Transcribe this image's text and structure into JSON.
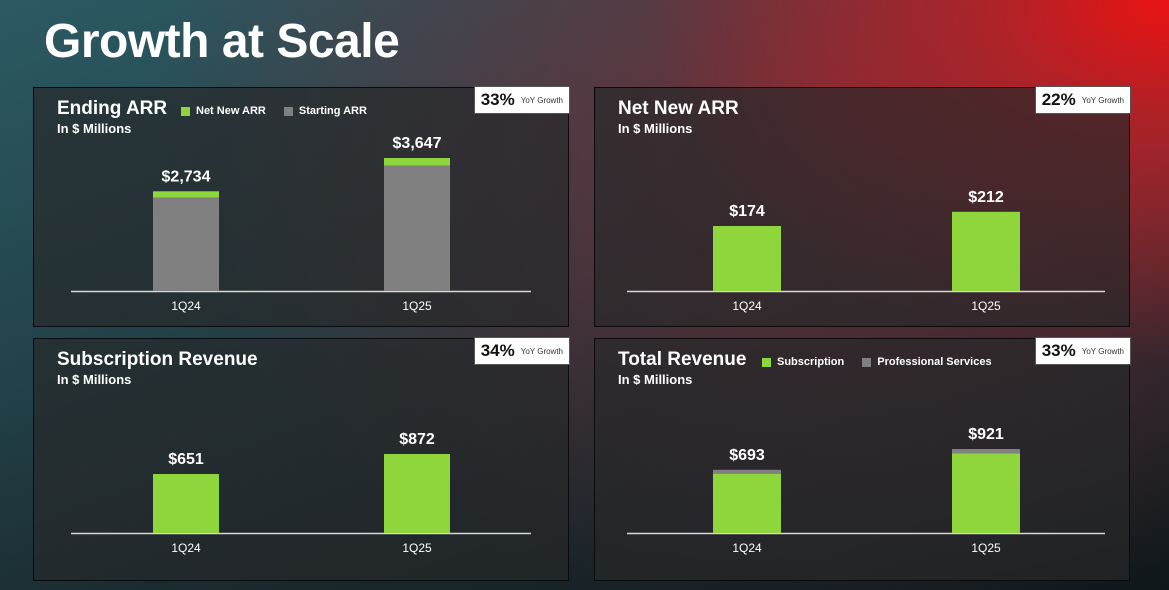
{
  "page_title": "Growth at Scale",
  "colors": {
    "green": "#8fd63c",
    "gray": "#808080",
    "axis": "#d8d8d8"
  },
  "panels": [
    {
      "title": "Ending ARR",
      "subtitle": "In $ Millions",
      "badge": {
        "value": "33%",
        "label": "YoY Growth"
      },
      "legend": [
        {
          "label": "Net New ARR",
          "color": "#8fd63c"
        },
        {
          "label": "Starting ARR",
          "color": "#808080"
        }
      ]
    },
    {
      "title": "Net New ARR",
      "subtitle": "In $ Millions",
      "badge": {
        "value": "22%",
        "label": "YoY Growth"
      }
    },
    {
      "title": "Subscription Revenue",
      "subtitle": "In $ Millions",
      "badge": {
        "value": "34%",
        "label": "YoY Growth"
      }
    },
    {
      "title": "Total Revenue",
      "subtitle": "In $ Millions",
      "badge": {
        "value": "33%",
        "label": "YoY Growth"
      },
      "legend": [
        {
          "label": "Subscription",
          "color": "#8fd63c"
        },
        {
          "label": "Professional Services",
          "color": "#808080"
        }
      ]
    }
  ],
  "chart_data": [
    {
      "type": "bar",
      "title": "Ending ARR",
      "categories": [
        "1Q24",
        "1Q25"
      ],
      "stacked": true,
      "series": [
        {
          "name": "Starting ARR",
          "values": [
            2560,
            3435
          ],
          "color": "#808080"
        },
        {
          "name": "Net New ARR",
          "values": [
            174,
            212
          ],
          "color": "#8fd63c"
        }
      ],
      "totals": [
        2734,
        3647
      ],
      "data_labels": [
        "$2,734",
        "$3,647"
      ]
    },
    {
      "type": "bar",
      "title": "Net New ARR",
      "categories": [
        "1Q24",
        "1Q25"
      ],
      "series": [
        {
          "name": "Net New ARR",
          "values": [
            174,
            212
          ],
          "color": "#8fd63c"
        }
      ],
      "data_labels": [
        "$174",
        "$212"
      ]
    },
    {
      "type": "bar",
      "title": "Subscription Revenue",
      "categories": [
        "1Q24",
        "1Q25"
      ],
      "series": [
        {
          "name": "Subscription",
          "values": [
            651,
            872
          ],
          "color": "#8fd63c"
        }
      ],
      "data_labels": [
        "$651",
        "$872"
      ]
    },
    {
      "type": "bar",
      "title": "Total Revenue",
      "categories": [
        "1Q24",
        "1Q25"
      ],
      "stacked": true,
      "series": [
        {
          "name": "Subscription",
          "values": [
            651,
            872
          ],
          "color": "#8fd63c"
        },
        {
          "name": "Professional Services",
          "values": [
            42,
            49
          ],
          "color": "#808080"
        }
      ],
      "totals": [
        693,
        921
      ],
      "data_labels": [
        "$693",
        "$921"
      ]
    }
  ]
}
